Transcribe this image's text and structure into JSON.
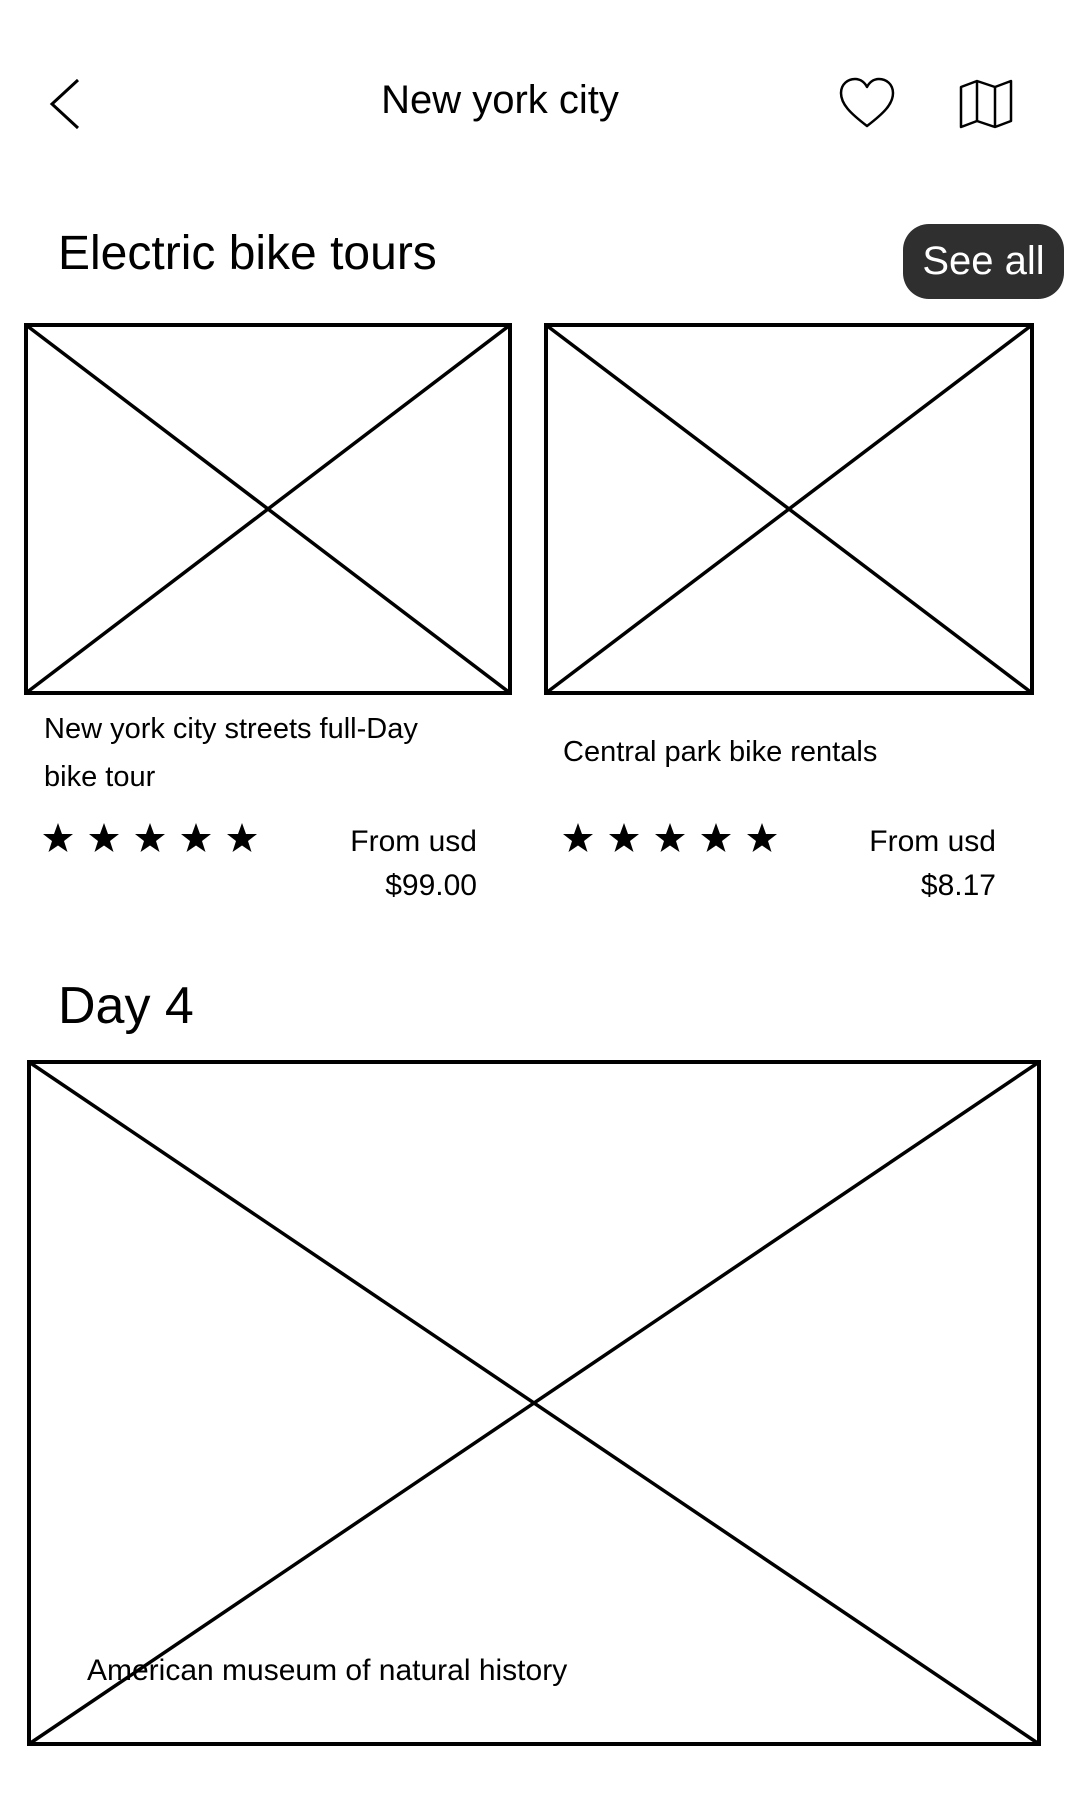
{
  "header": {
    "title": "New york city",
    "back_icon": "chevron-left-icon",
    "favorite_icon": "heart-icon",
    "map_icon": "map-icon"
  },
  "bike_section": {
    "title": "Electric bike tours",
    "see_all_label": "See all",
    "cards": [
      {
        "title": "New york city streets full-Day bike tour",
        "rating": 5,
        "price_label": "From usd",
        "price": "$99.00"
      },
      {
        "title": "Central park bike rentals",
        "rating": 5,
        "price_label": "From usd",
        "price": "$8.17"
      }
    ]
  },
  "day_section": {
    "title": "Day 4",
    "feature_caption": "American museum of natural history"
  },
  "colors": {
    "see_all_bg": "#2f2f2f",
    "see_all_text": "#ffffff",
    "wireframe_stroke": "#000000"
  }
}
